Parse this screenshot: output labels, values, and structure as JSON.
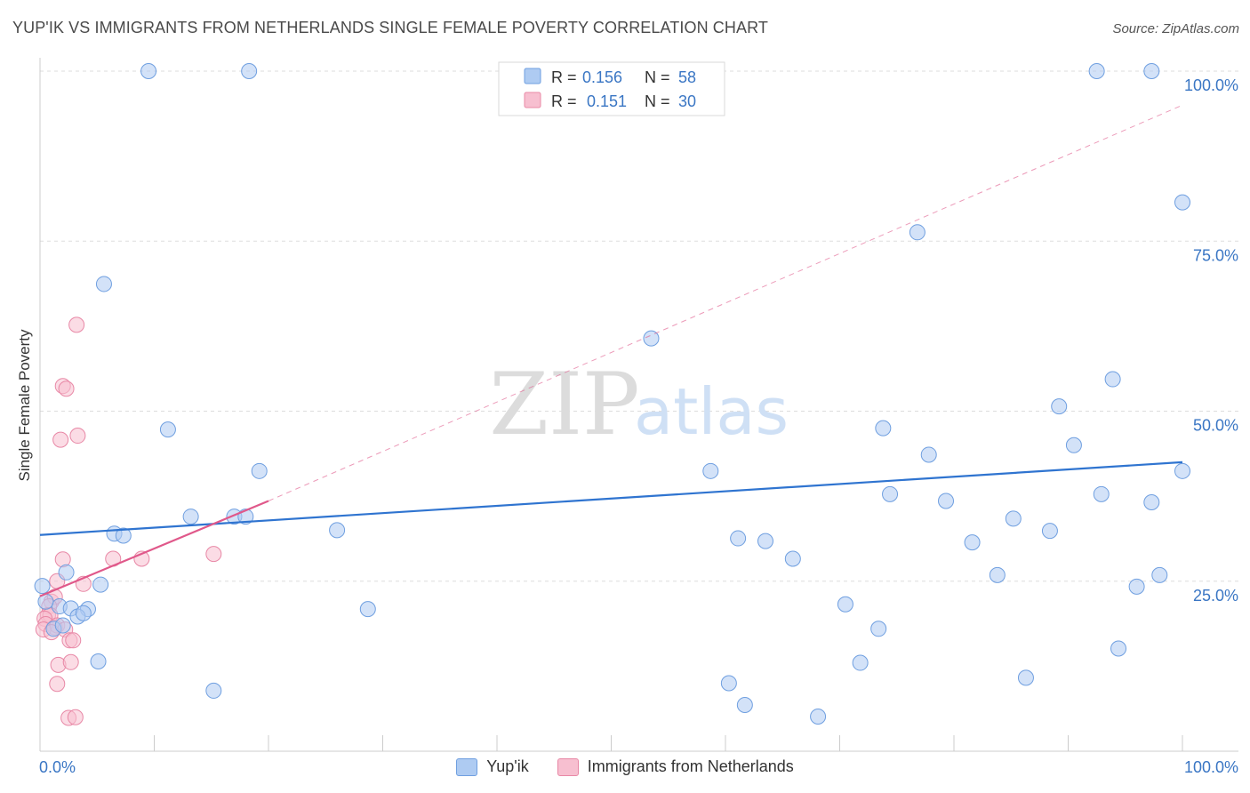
{
  "title": "YUP'IK VS IMMIGRANTS FROM NETHERLANDS SINGLE FEMALE POVERTY CORRELATION CHART",
  "source": "Source: ZipAtlas.com",
  "colors": {
    "blue_fill": "#aecbf2",
    "blue_stroke": "#6f9fe0",
    "blue_line": "#2f74d0",
    "pink_fill": "#f7bfd0",
    "pink_stroke": "#e888a6",
    "pink_line": "#e0588a",
    "value_text": "#3a76c4"
  },
  "legend": {
    "rows": [
      {
        "r_label": "R =",
        "r_value": "0.156",
        "n_label": "N =",
        "n_value": "58"
      },
      {
        "r_label": "R =",
        "r_value": "0.151",
        "n_label": "N =",
        "n_value": "30"
      }
    ]
  },
  "bottom_legend": [
    "Yup'ik",
    "Immigrants from Netherlands"
  ],
  "watermark": {
    "left": "ZIP",
    "right": "atlas"
  },
  "chart_data": {
    "type": "scatter",
    "ylabel": "Single Female Poverty",
    "xlabel": "",
    "xlim": [
      0,
      100
    ],
    "ylim": [
      0,
      100
    ],
    "x_tick_labels": [
      "0.0%",
      "100.0%"
    ],
    "y_tick_labels": [
      "25.0%",
      "50.0%",
      "75.0%",
      "100.0%"
    ],
    "y_ticks": [
      25,
      50,
      75,
      100
    ],
    "grid": true,
    "legend_position": "top-center",
    "series": [
      {
        "name": "Yup'ik",
        "R": 0.156,
        "N": 58,
        "trend": {
          "x0": 0,
          "y0": 31.8,
          "x1": 100,
          "y1": 42.5
        },
        "points": [
          [
            9.5,
            100
          ],
          [
            18.3,
            100
          ],
          [
            92.5,
            100
          ],
          [
            97.3,
            100
          ],
          [
            100,
            80.7
          ],
          [
            76.8,
            76.3
          ],
          [
            53.5,
            60.7
          ],
          [
            5.6,
            68.7
          ],
          [
            93.9,
            54.7
          ],
          [
            89.2,
            50.7
          ],
          [
            11.2,
            47.3
          ],
          [
            73.8,
            47.5
          ],
          [
            77.8,
            43.6
          ],
          [
            90.5,
            45.0
          ],
          [
            19.2,
            41.2
          ],
          [
            58.7,
            41.2
          ],
          [
            100,
            41.2
          ],
          [
            74.4,
            37.8
          ],
          [
            79.3,
            36.8
          ],
          [
            92.9,
            37.8
          ],
          [
            97.3,
            36.6
          ],
          [
            85.2,
            34.2
          ],
          [
            88.4,
            32.4
          ],
          [
            13.2,
            34.5
          ],
          [
            17.0,
            34.5
          ],
          [
            18.0,
            34.5
          ],
          [
            26.0,
            32.5
          ],
          [
            6.5,
            32.0
          ],
          [
            7.3,
            31.7
          ],
          [
            61.1,
            31.3
          ],
          [
            63.5,
            30.9
          ],
          [
            81.6,
            30.7
          ],
          [
            65.9,
            28.3
          ],
          [
            83.8,
            25.9
          ],
          [
            98.0,
            25.9
          ],
          [
            96.0,
            24.2
          ],
          [
            0.2,
            24.3
          ],
          [
            2.3,
            26.3
          ],
          [
            5.3,
            24.5
          ],
          [
            1.7,
            21.3
          ],
          [
            2.7,
            21.0
          ],
          [
            4.2,
            20.9
          ],
          [
            3.3,
            19.8
          ],
          [
            3.8,
            20.3
          ],
          [
            28.7,
            20.9
          ],
          [
            70.5,
            21.6
          ],
          [
            1.2,
            18.0
          ],
          [
            73.4,
            18.0
          ],
          [
            5.1,
            13.2
          ],
          [
            71.8,
            13.0
          ],
          [
            94.4,
            15.1
          ],
          [
            86.3,
            10.8
          ],
          [
            15.2,
            8.9
          ],
          [
            60.3,
            10.0
          ],
          [
            61.7,
            6.8
          ],
          [
            68.1,
            5.1
          ],
          [
            0.5,
            22.0
          ],
          [
            2.0,
            18.5
          ]
        ]
      },
      {
        "name": "Immigrants from Netherlands",
        "R": 0.151,
        "N": 30,
        "trend": {
          "x0": 0,
          "y0": 22.8,
          "x1": 20,
          "y1": 36.8
        },
        "trend_extension": {
          "x0": 20,
          "y0": 36.8,
          "x1": 100,
          "y1": 95.0
        },
        "points": [
          [
            3.2,
            62.7
          ],
          [
            2.0,
            53.7
          ],
          [
            2.3,
            53.3
          ],
          [
            3.3,
            46.4
          ],
          [
            1.8,
            45.8
          ],
          [
            2.0,
            28.2
          ],
          [
            6.4,
            28.3
          ],
          [
            8.9,
            28.3
          ],
          [
            15.2,
            29.0
          ],
          [
            1.5,
            25.0
          ],
          [
            3.8,
            24.6
          ],
          [
            1.0,
            22.0
          ],
          [
            1.3,
            22.7
          ],
          [
            0.8,
            21.3
          ],
          [
            0.7,
            20.0
          ],
          [
            0.9,
            20.0
          ],
          [
            0.4,
            19.5
          ],
          [
            0.5,
            18.7
          ],
          [
            1.3,
            18.2
          ],
          [
            1.5,
            18.5
          ],
          [
            2.2,
            17.9
          ],
          [
            2.6,
            16.3
          ],
          [
            2.9,
            16.3
          ],
          [
            1.6,
            12.7
          ],
          [
            2.7,
            13.1
          ],
          [
            1.5,
            9.9
          ],
          [
            2.5,
            4.9
          ],
          [
            3.1,
            5.0
          ],
          [
            0.3,
            17.9
          ],
          [
            1.0,
            17.5
          ]
        ]
      }
    ]
  }
}
